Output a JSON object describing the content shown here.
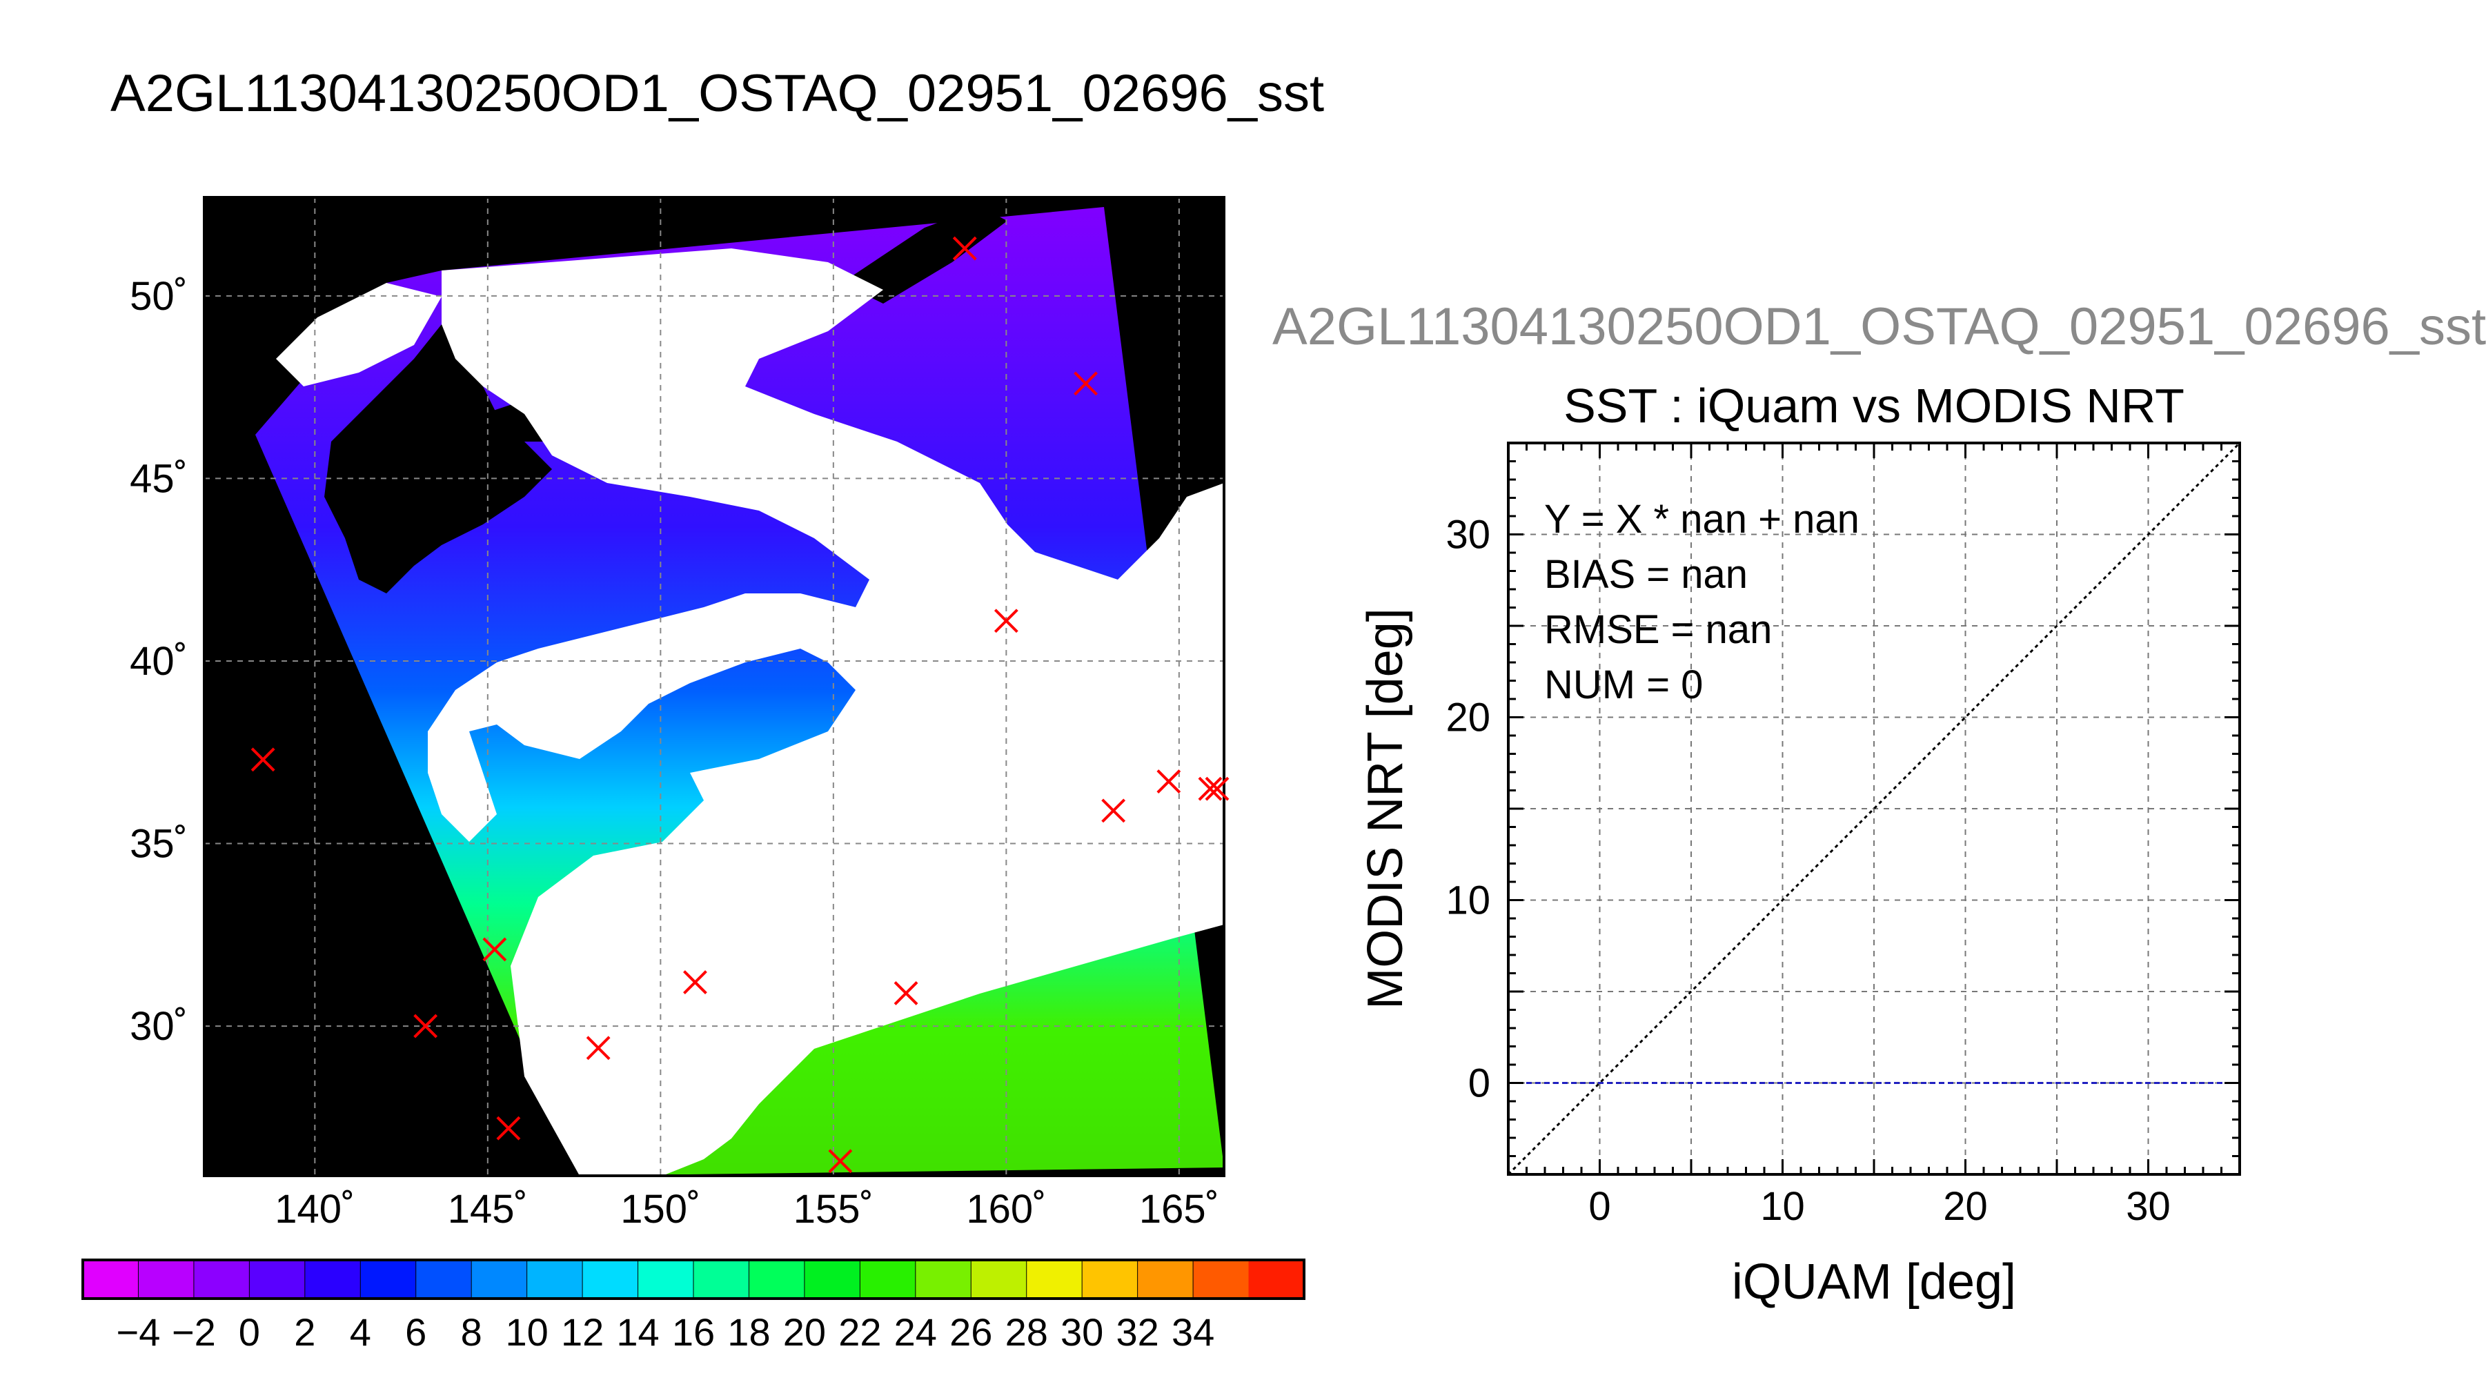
{
  "title": "A2GL11304130250OD1_OSTAQ_02951_02696_sst",
  "map": {
    "lon_ticks": [
      140,
      145,
      150,
      155,
      160,
      165
    ],
    "lat_ticks": [
      30,
      35,
      40,
      45,
      50
    ],
    "lon_labels": [
      "140˚",
      "145˚",
      "150˚",
      "155˚",
      "160˚",
      "165˚"
    ],
    "lat_labels": [
      "30˚",
      "35˚",
      "40˚",
      "45˚",
      "50˚"
    ],
    "lon_range": [
      136.8,
      166.3
    ],
    "lat_range": [
      25.9,
      52.7
    ],
    "markers": [
      {
        "lon": 138.5,
        "lat": 37.3
      },
      {
        "lon": 143.2,
        "lat": 30.0
      },
      {
        "lon": 145.2,
        "lat": 32.1
      },
      {
        "lon": 145.6,
        "lat": 27.2
      },
      {
        "lon": 148.2,
        "lat": 29.4
      },
      {
        "lon": 151.0,
        "lat": 31.2
      },
      {
        "lon": 155.2,
        "lat": 26.3
      },
      {
        "lon": 157.1,
        "lat": 30.9
      },
      {
        "lon": 158.8,
        "lat": 51.3
      },
      {
        "lon": 160.0,
        "lat": 41.1
      },
      {
        "lon": 162.3,
        "lat": 47.6
      },
      {
        "lon": 163.1,
        "lat": 35.9
      },
      {
        "lon": 164.7,
        "lat": 36.7
      },
      {
        "lon": 165.9,
        "lat": 36.5
      },
      {
        "lon": 166.1,
        "lat": 36.5
      }
    ],
    "colors": {
      "land": "#000000",
      "cloud": "#ffffff",
      "marker": "#ff0000"
    }
  },
  "colorbar": {
    "labels": [
      "−4",
      "−2",
      "0",
      "2",
      "4",
      "6",
      "8",
      "10",
      "12",
      "14",
      "16",
      "18",
      "20",
      "22",
      "24",
      "26",
      "28",
      "30",
      "32",
      "34"
    ],
    "colors": [
      "#e000ff",
      "#b800ff",
      "#8c00ff",
      "#5a00ff",
      "#2a00ff",
      "#0018ff",
      "#0050ff",
      "#0088ff",
      "#00b4ff",
      "#00dcff",
      "#00ffd4",
      "#00ff96",
      "#00ff5a",
      "#00f020",
      "#28f000",
      "#78f000",
      "#bef000",
      "#f0f000",
      "#ffc400",
      "#ff9600",
      "#ff5a00",
      "#ff1e00"
    ]
  },
  "scatter": {
    "title_top": "A2GL11304130250OD1_OSTAQ_02951_02696_sst",
    "title": "SST : iQuam vs MODIS NRT",
    "stats": [
      "Y = X * nan + nan",
      "BIAS = nan",
      "RMSE = nan",
      "NUM = 0"
    ],
    "xlabel": "iQUAM [deg]",
    "ylabel": "MODIS NRT [deg]"
  },
  "chart_data": {
    "type": "scatter",
    "title": "SST : iQuam vs MODIS NRT",
    "xlabel": "iQUAM [deg]",
    "ylabel": "MODIS NRT [deg]",
    "xlim": [
      -5,
      35
    ],
    "ylim": [
      -5,
      35
    ],
    "xticks": [
      0,
      10,
      20,
      30
    ],
    "yticks": [
      0,
      10,
      20,
      30
    ],
    "grid": true,
    "series": [],
    "reference_lines": [
      {
        "kind": "identity",
        "from": [
          -5,
          -5
        ],
        "to": [
          35,
          35
        ],
        "color": "#000000",
        "style": "dotted"
      },
      {
        "kind": "horizontal",
        "y": 0,
        "color": "#2020c0",
        "style": "dashed"
      }
    ]
  }
}
